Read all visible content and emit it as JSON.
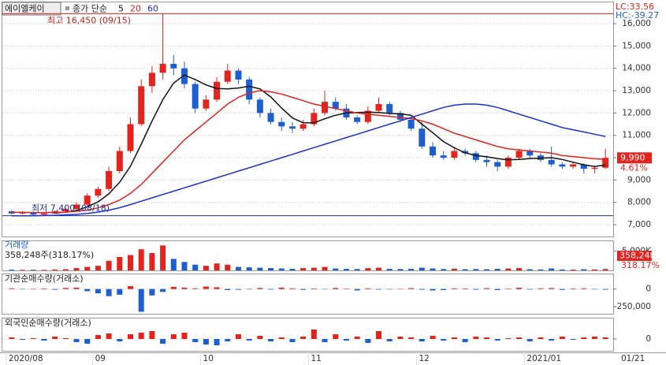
{
  "chart_data": [
    {
      "type": "candlestick",
      "name": "에이엘케이",
      "legend_prefix": "종가 단순",
      "categories": [
        "2020/08",
        null,
        null,
        null,
        null,
        null,
        null,
        null,
        "09",
        null,
        null,
        null,
        null,
        null,
        null,
        null,
        null,
        null,
        "10",
        null,
        null,
        null,
        null,
        null,
        null,
        null,
        null,
        null,
        "11",
        null,
        null,
        null,
        null,
        null,
        null,
        null,
        null,
        null,
        "12",
        null,
        null,
        null,
        null,
        null,
        null,
        null,
        null,
        null,
        "2021/01",
        null,
        null,
        null,
        null,
        null,
        null,
        null
      ],
      "last_date": "01/21",
      "open": [
        7600,
        7500,
        7550,
        7450,
        7500,
        7600,
        7700,
        7900,
        8300,
        8600,
        9400,
        10300,
        11500,
        13200,
        13800,
        14200,
        14000,
        13300,
        12200,
        12600,
        13400,
        13900,
        13500,
        12600,
        12000,
        11600,
        11400,
        11300,
        11500,
        12000,
        12500,
        12200,
        11800,
        11600,
        12100,
        12400,
        12000,
        11700,
        11300,
        10500,
        10100,
        10000,
        10300,
        10200,
        9900,
        9800,
        9600,
        10000,
        10300,
        10100,
        9900,
        9700,
        9600,
        9700,
        9500,
        9550
      ],
      "high": [
        7650,
        7600,
        7600,
        7550,
        7650,
        7750,
        8000,
        8400,
        8700,
        9600,
        10500,
        11800,
        13500,
        14100,
        16450,
        14600,
        14300,
        13400,
        12800,
        13600,
        14200,
        14000,
        13600,
        12700,
        12200,
        11800,
        11600,
        11700,
        12200,
        13000,
        12700,
        12400,
        11900,
        12300,
        12700,
        12500,
        12100,
        11800,
        11600,
        10700,
        10300,
        10500,
        10400,
        10300,
        10100,
        9900,
        10100,
        10400,
        10400,
        10200,
        10500,
        9800,
        9800,
        9750,
        9600,
        10400
      ],
      "low": [
        7450,
        7450,
        7400,
        7420,
        7480,
        7550,
        7650,
        7850,
        8200,
        8500,
        9300,
        10200,
        11400,
        12900,
        13500,
        13700,
        13100,
        12000,
        12100,
        12500,
        13300,
        13300,
        12400,
        11800,
        11500,
        11200,
        11100,
        11200,
        11400,
        11900,
        12100,
        11700,
        11500,
        11500,
        12000,
        11900,
        11600,
        11200,
        10400,
        10000,
        9900,
        9900,
        10100,
        9800,
        9600,
        9400,
        9500,
        9900,
        10000,
        9800,
        9600,
        9500,
        9500,
        9300,
        9300,
        9500
      ],
      "close": [
        7500,
        7550,
        7450,
        7500,
        7600,
        7700,
        7900,
        8300,
        8600,
        9400,
        10300,
        11500,
        13200,
        13800,
        14200,
        14000,
        13300,
        12200,
        12600,
        13400,
        13900,
        13500,
        12600,
        12000,
        11600,
        11400,
        11300,
        11500,
        12000,
        12500,
        12200,
        11800,
        11600,
        12100,
        12400,
        12000,
        11700,
        11300,
        10500,
        10100,
        10000,
        10300,
        10200,
        9900,
        9800,
        9600,
        10000,
        10300,
        10100,
        9900,
        9700,
        9600,
        9700,
        9500,
        9550,
        9990
      ],
      "up_color": "#e3231e",
      "down_color": "#1d5fd1",
      "series": [
        {
          "name": "5",
          "color": "#111111",
          "values": [
            null,
            null,
            null,
            null,
            7520,
            7560,
            7630,
            7800,
            8020,
            8380,
            8900,
            9620,
            10600,
            11640,
            12600,
            13340,
            13700,
            13500,
            13260,
            13100,
            13080,
            13120,
            13200,
            13080,
            12720,
            12220,
            11780,
            11560,
            11560,
            11740,
            11900,
            12000,
            12020,
            12040,
            12020,
            11980,
            11960,
            11900,
            11500,
            11120,
            10720,
            10440,
            10220,
            10100,
            10040,
            9960,
            9900,
            9920,
            9960,
            9980,
            10000,
            9920,
            9800,
            9680,
            9610,
            9670
          ]
        },
        {
          "name": "20",
          "color": "#e3231e",
          "values": [
            7550,
            7550,
            7540,
            7540,
            7550,
            7560,
            7600,
            7650,
            7750,
            7900,
            8100,
            8400,
            8800,
            9300,
            9800,
            10300,
            10800,
            11200,
            11600,
            12000,
            12400,
            12700,
            12900,
            13000,
            12950,
            12850,
            12700,
            12550,
            12400,
            12300,
            12200,
            12100,
            12000,
            11950,
            11900,
            11850,
            11800,
            11750,
            11650,
            11500,
            11300,
            11100,
            10950,
            10800,
            10650,
            10500,
            10400,
            10350,
            10300,
            10250,
            10200,
            10100,
            10050,
            10000,
            9950,
            9920
          ]
        },
        {
          "name": "60",
          "color": "#1b2fd6",
          "values": [
            7400,
            7400,
            7400,
            7410,
            7420,
            7440,
            7460,
            7500,
            7560,
            7650,
            7760,
            7900,
            8050,
            8200,
            8350,
            8500,
            8650,
            8800,
            8950,
            9100,
            9250,
            9400,
            9550,
            9700,
            9850,
            10000,
            10150,
            10300,
            10450,
            10600,
            10750,
            10900,
            11050,
            11200,
            11350,
            11500,
            11650,
            11800,
            11950,
            12100,
            12250,
            12350,
            12400,
            12400,
            12350,
            12250,
            12100,
            11950,
            11800,
            11650,
            11500,
            11350,
            11250,
            11150,
            11050,
            10950
          ]
        }
      ],
      "ylim": [
        6470,
        16920
      ],
      "yticks": [
        {
          "value": 7000,
          "label": "7,000"
        },
        {
          "value": 8000,
          "label": "8,000"
        },
        {
          "value": 9000,
          "label": "9,000"
        },
        {
          "value": 10000,
          "label": "10,000"
        },
        {
          "value": 11000,
          "label": "11,000"
        },
        {
          "value": 12000,
          "label": "12,000"
        },
        {
          "value": 13000,
          "label": "13,000"
        },
        {
          "value": 14000,
          "label": "14,000"
        },
        {
          "value": 15000,
          "label": "15,000"
        },
        {
          "value": 16000,
          "label": "16,000"
        }
      ],
      "grid": true,
      "high_mark": {
        "value": 16450,
        "label": "최고 16,450 (09/15)"
      },
      "low_mark": {
        "value": 7400,
        "label": "최저 7,400 (08/18)"
      },
      "last_price": {
        "value": 9990,
        "label": "9,990"
      },
      "change": {
        "value": 4.61,
        "label": "4.61%"
      },
      "lc": "LC:33.56",
      "hc": "HC:-39.27"
    },
    {
      "type": "bar",
      "title": "거래량",
      "info": "358,248주(318.17%)",
      "values": [
        200000,
        150000,
        180000,
        150000,
        250000,
        300000,
        600000,
        900000,
        1200000,
        2500000,
        3500000,
        4000000,
        5500000,
        4500000,
        6500000,
        3000000,
        2200000,
        1500000,
        1200000,
        1800000,
        1500000,
        900000,
        800000,
        700000,
        600000,
        500000,
        400000,
        600000,
        700000,
        900000,
        500000,
        400000,
        350000,
        600000,
        700000,
        400000,
        350000,
        400000,
        700000,
        500000,
        350000,
        450000,
        300000,
        350000,
        300000,
        400000,
        500000,
        600000,
        300000,
        250000,
        500000,
        250000,
        200000,
        300000,
        250000,
        358248
      ],
      "last_label": "358,248",
      "last_pct": "318.17%",
      "ylim": [
        0,
        7600000
      ],
      "yticks": [
        {
          "value": 5000000,
          "label": "5,000K"
        }
      ]
    },
    {
      "type": "bar",
      "title": "기관순매수량(거래소)",
      "values": [
        10000,
        -5000,
        0,
        8000,
        -10000,
        15000,
        20000,
        -30000,
        -60000,
        -100000,
        -80000,
        40000,
        -320000,
        -90000,
        -40000,
        30000,
        20000,
        10000,
        35000,
        25000,
        -15000,
        -10000,
        5000,
        15000,
        -8000,
        20000,
        10000,
        -12000,
        8000,
        -5000,
        15000,
        6000,
        -20000,
        10000,
        -8000,
        -6000,
        0,
        12000,
        -10000,
        -20000,
        -15000,
        10000,
        8000,
        -10000,
        12000,
        -15000,
        6000,
        18000,
        -8000,
        10000,
        14000,
        -12000,
        8000,
        10000,
        -6000,
        -10000
      ],
      "ylim": [
        -348000,
        196000
      ],
      "yticks": [
        0,
        {
          "value": -250000,
          "label": "-250,000"
        }
      ]
    },
    {
      "type": "bar",
      "title": "외국인순매수량(거래소)",
      "values": [
        20000,
        -10000,
        10000,
        -20000,
        30000,
        10000,
        -40000,
        -60000,
        50000,
        70000,
        -30000,
        60000,
        80000,
        100000,
        -60000,
        60000,
        80000,
        -40000,
        -70000,
        -80000,
        -30000,
        60000,
        -20000,
        40000,
        -30000,
        20000,
        -40000,
        30000,
        120000,
        -40000,
        60000,
        -20000,
        30000,
        -50000,
        100000,
        -30000,
        30000,
        20000,
        -30000,
        40000,
        -20000,
        20000,
        -40000,
        30000,
        20000,
        -20000,
        10000,
        20000,
        -30000,
        20000,
        -20000,
        30000,
        -10000,
        20000,
        30000,
        20000
      ],
      "ylim": [
        -150000,
        250000
      ],
      "yticks": [
        0
      ]
    }
  ]
}
